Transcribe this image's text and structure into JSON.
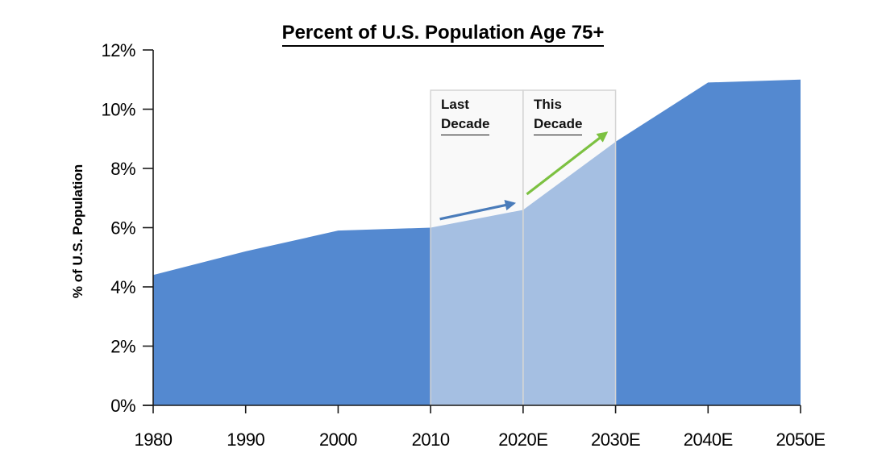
{
  "chart_data": {
    "type": "area",
    "title": "Percent of U.S. Population Age 75+",
    "xlabel": "",
    "ylabel": "% of U.S. Population",
    "categories": [
      "1980",
      "1990",
      "2000",
      "2010",
      "2020E",
      "2030E",
      "2040E",
      "2050E"
    ],
    "series": [
      {
        "name": "Percent of U.S. Population Age 75+",
        "values": [
          4.4,
          5.2,
          5.9,
          6.0,
          6.6,
          8.9,
          10.9,
          11.0
        ]
      }
    ],
    "ylim": [
      0,
      12
    ],
    "y_tick_values": [
      0,
      2,
      4,
      6,
      8,
      10,
      12
    ],
    "y_tick_labels": [
      "0%",
      "2%",
      "4%",
      "6%",
      "8%",
      "10%",
      "12%"
    ],
    "grid": false,
    "legend": "none",
    "area_color": "#5489d0",
    "axis_color": "#1a1a1a",
    "highlight_fill": "rgba(243,243,243,0.51)",
    "highlight_border": "#d4d4d4",
    "highlight_regions": [
      {
        "from": "2010",
        "to": "2020E",
        "label_line1": "Last",
        "label_line2": "Decade",
        "arrow_color": "#4a7cba",
        "arrow_from": [
          3.1,
          6.29
        ],
        "arrow_to": [
          3.9,
          6.82
        ]
      },
      {
        "from": "2020E",
        "to": "2030E",
        "label_line1": "This",
        "label_line2": "Decade",
        "arrow_color": "#7cc141",
        "arrow_from": [
          4.04,
          7.13
        ],
        "arrow_to": [
          4.9,
          9.2
        ]
      }
    ]
  }
}
